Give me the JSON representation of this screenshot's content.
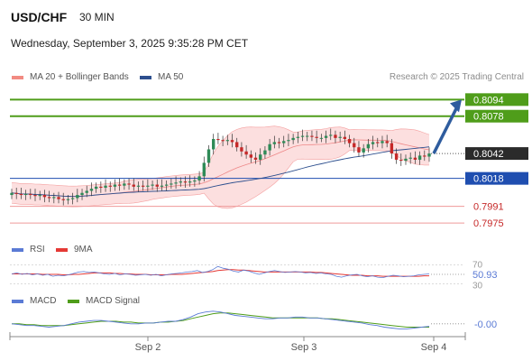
{
  "header": {
    "symbol": "USD/CHF",
    "timeframe": "30 MIN",
    "timestamp": "Wednesday, September 3, 2025 9:35:28 PM CET",
    "credit": "Research © 2025 Trading Central"
  },
  "colors": {
    "bollinger_fill": "#fbd9d9",
    "bollinger_line": "#f4a0a0",
    "ma50": "#2d4f8e",
    "resistance": "#4f9d1a",
    "pivot": "#1f4eb0",
    "support": "#ef9a9a",
    "candle_up": "#2e8b57",
    "candle_down": "#c62828",
    "current": "#2b2b2b",
    "arrow": "#2e5c9e",
    "rsi": "#5b7bd5",
    "rsi_ma": "#e53935",
    "macd": "#5b7bd5",
    "macd_signal": "#4f9d1a"
  },
  "chart_data": [
    {
      "type": "candlestick",
      "legend": [
        {
          "label": "MA 20 + Bollinger Bands",
          "color": "#f28b82"
        },
        {
          "label": "MA 50",
          "color": "#2d4f8e"
        }
      ],
      "ylim": [
        0.7962,
        0.8103
      ],
      "xticks": [
        "Sep 2",
        "Sep 3",
        "Sep 4"
      ],
      "current_price": "0.8042",
      "levels": [
        {
          "label": "0.8094",
          "value": 0.8094,
          "kind": "resistance"
        },
        {
          "label": "0.8078",
          "value": 0.8078,
          "kind": "resistance"
        },
        {
          "label": "0.8018",
          "value": 0.8018,
          "kind": "pivot"
        },
        {
          "label": "0.7991",
          "value": 0.7991,
          "kind": "support"
        },
        {
          "label": "0.7975",
          "value": 0.7975,
          "kind": "support"
        }
      ],
      "forecast_arrow": {
        "from": 0.8042,
        "to": 0.8094
      },
      "closes": [
        0.8004,
        0.8003,
        0.8002,
        0.8003,
        0.8002,
        0.8001,
        0.8002,
        0.8,
        0.7999,
        0.8,
        0.7998,
        0.7997,
        0.7998,
        0.7999,
        0.8002,
        0.8004,
        0.8006,
        0.8008,
        0.801,
        0.8009,
        0.8011,
        0.801,
        0.8012,
        0.8011,
        0.8013,
        0.8012,
        0.801,
        0.8011,
        0.801,
        0.8011,
        0.8012,
        0.801,
        0.8011,
        0.8012,
        0.8013,
        0.8014,
        0.8015,
        0.8014,
        0.8015,
        0.8016,
        0.802,
        0.8033,
        0.8046,
        0.8056,
        0.8055,
        0.8054,
        0.8055,
        0.8053,
        0.8048,
        0.8044,
        0.8041,
        0.8038,
        0.8036,
        0.8041,
        0.8045,
        0.8051,
        0.8053,
        0.8052,
        0.8054,
        0.8055,
        0.8057,
        0.8058,
        0.8059,
        0.8059,
        0.8058,
        0.8057,
        0.8057,
        0.8059,
        0.806,
        0.8057,
        0.8058,
        0.8056,
        0.8052,
        0.8048,
        0.8043,
        0.8047,
        0.8051,
        0.8053,
        0.8052,
        0.8054,
        0.8052,
        0.8042,
        0.8036,
        0.8035,
        0.8037,
        0.8038,
        0.8036,
        0.804,
        0.8039,
        0.8042
      ]
    },
    {
      "type": "line",
      "name_label": "RSI",
      "ma_label": "9MA",
      "ticks": [
        "70",
        "50",
        "30"
      ],
      "value_label": "50.93",
      "ylim": [
        25,
        75
      ],
      "series": [
        {
          "name": "RSI",
          "values": [
            51,
            53,
            50,
            52,
            49,
            51,
            48,
            50,
            46,
            48,
            47,
            49,
            52,
            55,
            56,
            54,
            55,
            53,
            51,
            50,
            52,
            49,
            51,
            50,
            48,
            49,
            50,
            48,
            50,
            47,
            49,
            51,
            52,
            53,
            55,
            56,
            58,
            54,
            56,
            60,
            67,
            63,
            61,
            57,
            55,
            59,
            57,
            53,
            50,
            53,
            56,
            58,
            56,
            54,
            55,
            56,
            55,
            53,
            54,
            52,
            53,
            51,
            50,
            46,
            44,
            47,
            49,
            50,
            47,
            45,
            47,
            44,
            43,
            46,
            48,
            47,
            45,
            46,
            47,
            49,
            50,
            51
          ]
        },
        {
          "name": "9MA",
          "values": [
            51,
            51,
            51,
            51,
            51,
            51,
            50,
            50,
            50,
            50,
            49,
            49,
            50,
            50,
            51,
            52,
            53,
            53,
            53,
            53,
            52,
            52,
            51,
            51,
            50,
            50,
            50,
            49,
            49,
            49,
            49,
            50,
            50,
            50,
            51,
            52,
            53,
            54,
            55,
            56,
            58,
            59,
            60,
            60,
            59,
            59,
            58,
            57,
            56,
            55,
            55,
            55,
            55,
            55,
            55,
            55,
            55,
            55,
            55,
            54,
            54,
            53,
            52,
            51,
            50,
            49,
            48,
            48,
            48,
            47,
            47,
            47,
            46,
            46,
            46,
            46,
            46,
            46,
            46,
            46,
            47,
            47
          ]
        }
      ]
    },
    {
      "type": "line",
      "name_label": "MACD",
      "signal_label": "MACD Signal",
      "value_label": "-0.00",
      "ylim": [
        -0.0012,
        0.0018
      ],
      "series": [
        {
          "name": "MACD",
          "values": [
            0.0,
            -0.0001,
            -0.0002,
            -0.0002,
            -0.0003,
            -0.0004,
            -0.0003,
            -0.0002,
            0.0,
            0.0002,
            0.0003,
            0.0004,
            0.0004,
            0.0003,
            0.0002,
            0.0001,
            0.0,
            0.0,
            0.0001,
            0.0001,
            0.0002,
            0.0003,
            0.0003,
            0.0005,
            0.0008,
            0.0012,
            0.0014,
            0.0015,
            0.0014,
            0.0012,
            0.001,
            0.0009,
            0.0008,
            0.0007,
            0.0006,
            0.0006,
            0.0007,
            0.0007,
            0.0008,
            0.0008,
            0.0007,
            0.0007,
            0.0006,
            0.0005,
            0.0004,
            0.0003,
            0.0002,
            0.0001,
            -0.0001,
            -0.0002,
            -0.0004,
            -0.0005,
            -0.0006,
            -0.0006,
            -0.0005,
            -0.0004,
            -0.0003
          ]
        },
        {
          "name": "MACD Signal",
          "values": [
            0.0,
            0.0,
            -0.0001,
            -0.0001,
            -0.0002,
            -0.0002,
            -0.0002,
            -0.0002,
            -0.0001,
            0.0,
            0.0001,
            0.0002,
            0.0003,
            0.0003,
            0.0003,
            0.0002,
            0.0002,
            0.0001,
            0.0001,
            0.0001,
            0.0002,
            0.0002,
            0.0003,
            0.0004,
            0.0006,
            0.0008,
            0.001,
            0.0012,
            0.0013,
            0.0013,
            0.0012,
            0.0011,
            0.001,
            0.0009,
            0.0008,
            0.0007,
            0.0007,
            0.0007,
            0.0007,
            0.0007,
            0.0007,
            0.0007,
            0.0006,
            0.0006,
            0.0005,
            0.0004,
            0.0003,
            0.0002,
            0.0001,
            0.0,
            -0.0001,
            -0.0002,
            -0.0003,
            -0.0004,
            -0.0004,
            -0.0004,
            -0.0004
          ]
        }
      ]
    }
  ]
}
